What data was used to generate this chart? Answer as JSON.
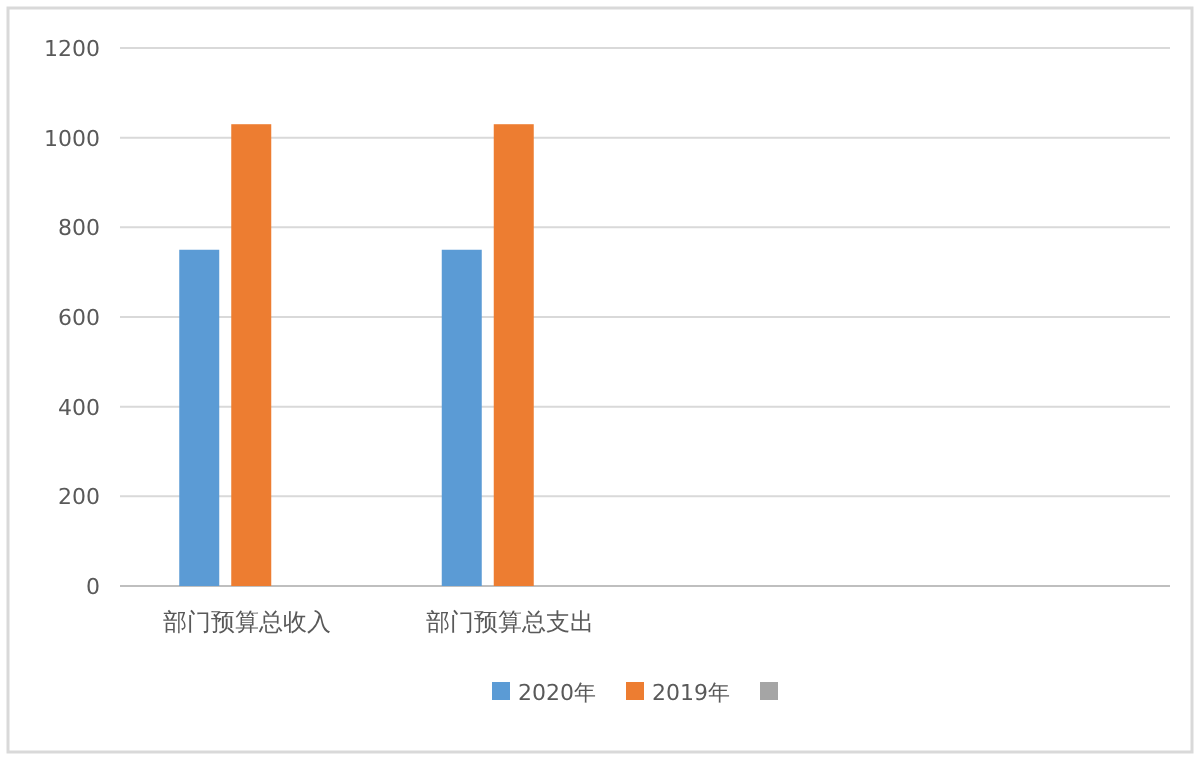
{
  "chart_data": {
    "type": "bar",
    "categories": [
      "部门预算总收入",
      "部门预算总支出",
      null,
      null
    ],
    "series": [
      {
        "name": "2020年",
        "color": "#5b9bd5",
        "values": [
          750,
          750,
          null,
          null
        ]
      },
      {
        "name": "2019年",
        "color": "#ed7d31",
        "values": [
          1030,
          1030,
          null,
          null
        ]
      },
      {
        "color": "#a5a5a5",
        "values": [
          null,
          null,
          null,
          null
        ]
      }
    ],
    "ylim": [
      0,
      1200
    ],
    "yticks": [
      0,
      200,
      400,
      600,
      800,
      1000,
      1200
    ],
    "grid": "y",
    "legend": "bottom"
  }
}
